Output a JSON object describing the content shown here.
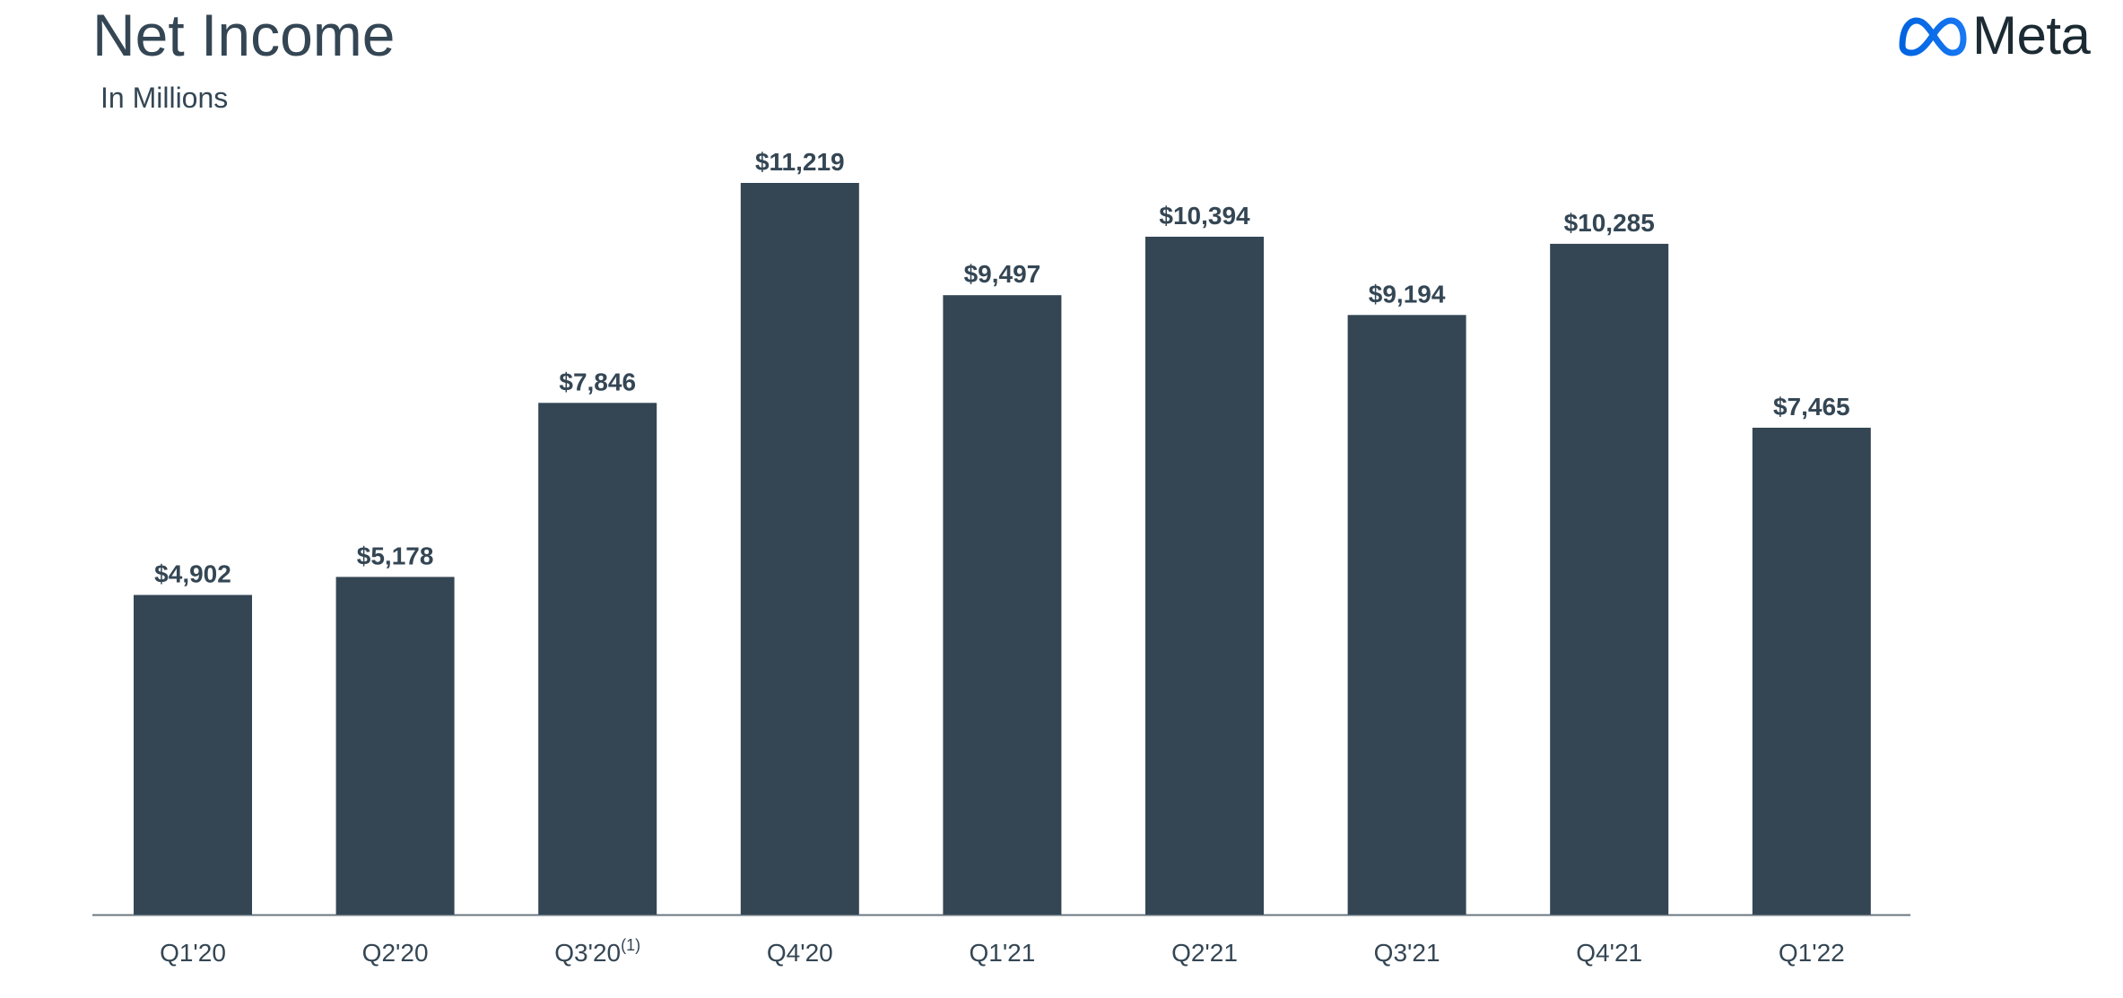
{
  "title": "Net Income",
  "subtitle": "In Millions",
  "logo": {
    "wordmark": "Meta",
    "icon": "meta-infinity-icon",
    "mark_color": "#1877f2",
    "text_color": "#1c2b33"
  },
  "colors": {
    "bar": "#344654",
    "text": "#344654",
    "axis": "#6b7780"
  },
  "chart_data": {
    "type": "bar",
    "title": "Net Income",
    "subtitle": "In Millions",
    "xlabel": "",
    "ylabel": "",
    "ylim": [
      0,
      11219
    ],
    "grid": false,
    "legend": "none",
    "categories": [
      "Q1'20",
      "Q2'20",
      "Q3'20",
      "Q4'20",
      "Q1'21",
      "Q2'21",
      "Q3'21",
      "Q4'21",
      "Q1'22"
    ],
    "category_superscripts": [
      "",
      "",
      "(1)",
      "",
      "",
      "",
      "",
      "",
      ""
    ],
    "values": [
      4902,
      5178,
      7846,
      11219,
      9497,
      10394,
      9194,
      10285,
      7465
    ],
    "value_labels": [
      "$4,902",
      "$5,178",
      "$7,846",
      "$11,219",
      "$9,497",
      "$10,394",
      "$9,194",
      "$10,285",
      "$7,465"
    ]
  }
}
